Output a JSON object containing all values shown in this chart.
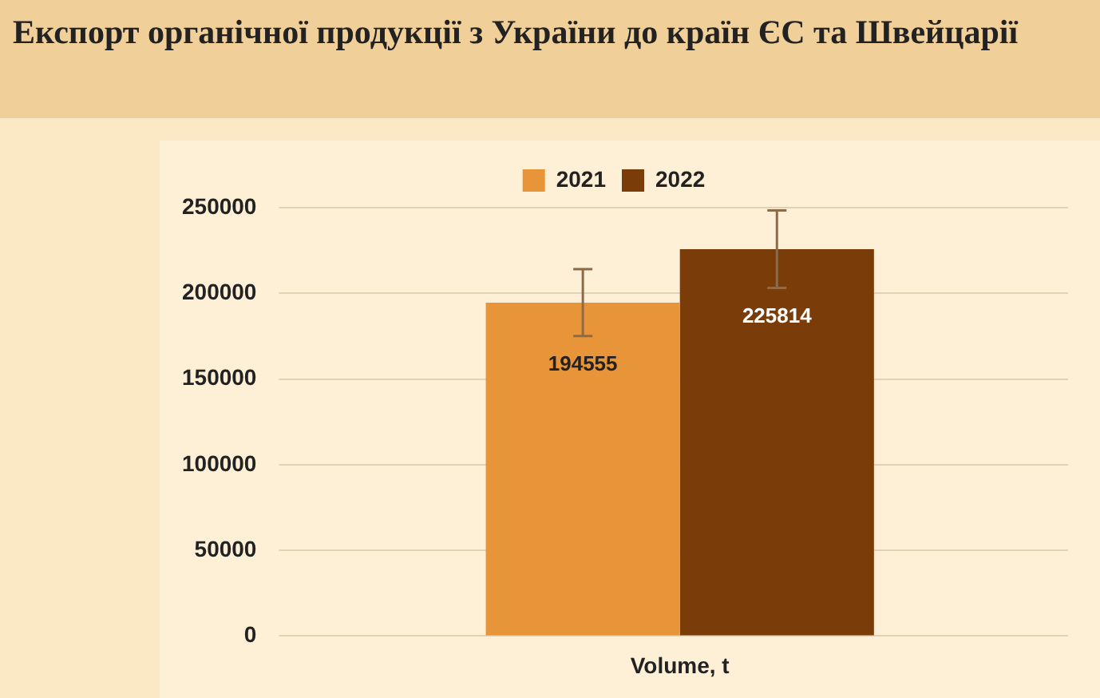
{
  "chart_data": {
    "type": "bar",
    "title": "Експорт органічної продукції з України до країн ЄС та Швейцарії",
    "categories": [
      "Volume, t"
    ],
    "series": [
      {
        "name": "2021",
        "color": "#e8953a",
        "values": [
          194555
        ],
        "errors": [
          19500
        ]
      },
      {
        "name": "2022",
        "color": "#7a3d0a",
        "values": [
          225814
        ],
        "errors": [
          22600
        ]
      }
    ],
    "ylim": [
      0,
      250000
    ],
    "yticks": [
      0,
      50000,
      100000,
      150000,
      200000,
      250000
    ],
    "grid": "y",
    "legend": "top",
    "data_labels": true
  }
}
